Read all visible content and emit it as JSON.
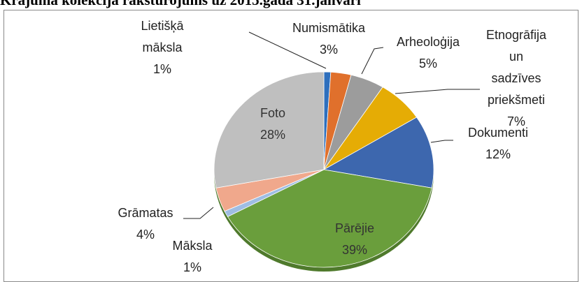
{
  "chart_data": {
    "type": "pie",
    "title": "Krājuma kolekcija raksturojums uz 2015.gada 31.janvāri",
    "categories": [
      "Lietišķā māksla",
      "Numismātika",
      "Arheoloģija",
      "Etnogrāfija un sadzīves priekšmeti",
      "Dokumenti",
      "Pārējie",
      "Māksla",
      "Grāmatas",
      "Foto"
    ],
    "values": [
      1,
      3,
      5,
      7,
      12,
      39,
      1,
      4,
      28
    ],
    "value_labels": [
      "1%",
      "3%",
      "5%",
      "7%",
      "12%",
      "39%",
      "1%",
      "4%",
      "28%"
    ],
    "colors": [
      "#2e6fbd",
      "#e0702c",
      "#9c9c9c",
      "#e5ac05",
      "#3d67ae",
      "#6a9e3c",
      "#9fbde3",
      "#f0a88c",
      "#bfbfbf"
    ]
  }
}
